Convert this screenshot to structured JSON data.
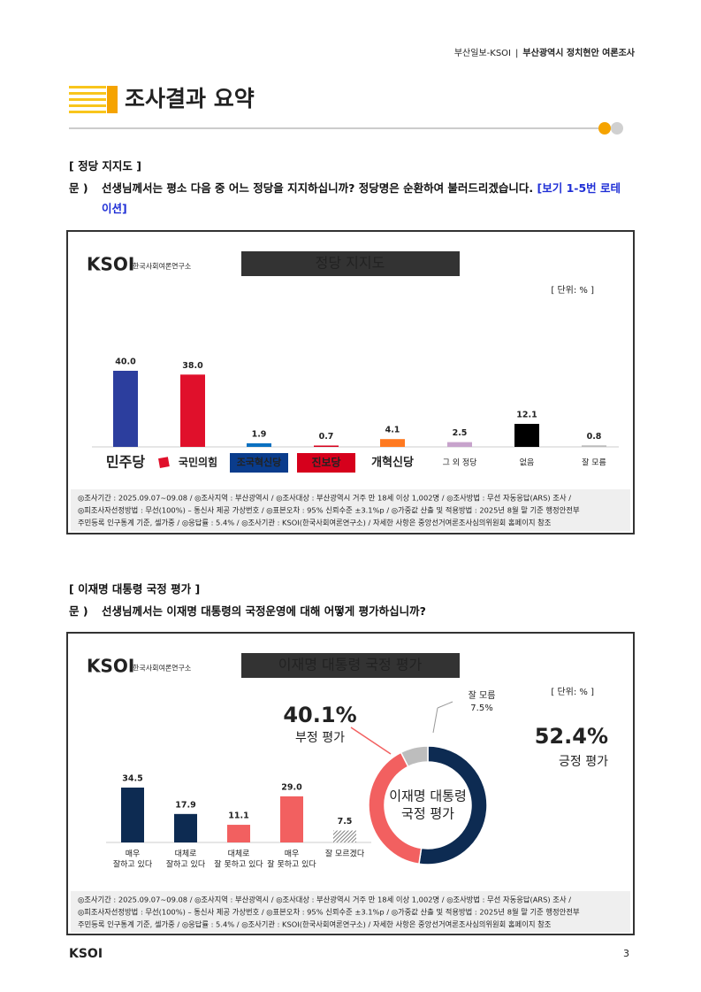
{
  "header": {
    "left": "부산일보-KSOI",
    "right": "부산광역시 정치현안 여론조사"
  },
  "section_title": "조사결과 요약",
  "questions": [
    {
      "label": "[ 정당 지지도 ]",
      "prefix": "문 )",
      "text": "선생님께서는 평소 다음 중 어느 정당을 지지하십니까? 정당명은 순환하여 불러드리겠습니다. ",
      "highlight": "[보기 1-5번 로테이션]"
    },
    {
      "label": "[ 이재명 대통령 국정 평가 ]",
      "prefix": "문 )",
      "text": "선생님께서는 이재명 대통령의 국정운영에 대해 어떻게 평가하십니까?"
    }
  ],
  "logo": {
    "brand": "KSOI",
    "org": "한국사회여론연구소"
  },
  "survey_note": [
    "◎조사기간 : 2025.09.07~09.08 / ◎조사지역 : 부산광역시 / ◎조사대상 : 부산광역시 거주 만 18세 이상 1,002명 / ◎조사방법 : 무선 자동응답(ARS) 조사 /",
    "◎피조사자선정방법 : 무선(100%) – 통신사 제공 가상번호 / ◎표본오차 : 95% 신뢰수준 ±3.1%p / ◎가중값 산출 및 적용방법 : 2025년 8월 말 기준 행정안전부",
    "주민등록 인구통계 기준, 셀가중 / ◎응답률 : 5.4% / ◎조사기관 : KSOI(한국사회여론연구소) / 자세한 사항은 중앙선거여론조사심의위원회 홈페이지 참조"
  ],
  "chart_data": [
    {
      "type": "bar",
      "title": "정당 지지도",
      "unit": "[ 단위: % ]",
      "categories": [
        [
          "민주당"
        ],
        [
          "국민의힘"
        ],
        [
          "조국혁신당"
        ],
        [
          "진보당"
        ],
        [
          "개혁신당"
        ],
        [
          "그 외 정당"
        ],
        [
          "없음"
        ],
        [
          "잘 모름"
        ]
      ],
      "values": [
        40.0,
        38.0,
        1.9,
        0.7,
        4.1,
        2.5,
        12.1,
        0.8
      ],
      "value_labels": [
        "40.0",
        "38.0",
        "1.9",
        "0.7",
        "4.1",
        "2.5",
        "12.1",
        "0.8"
      ],
      "colors": [
        "#2c3e9e",
        "#e0102b",
        "#0a70c0",
        "#d6001c",
        "#ff7920",
        "#c7a3cc",
        "#000000",
        "#bbbbbb"
      ]
    },
    {
      "type": "bar",
      "title": "이재명 대통령 국정 평가",
      "unit": "[ 단위: % ]",
      "categories": [
        [
          "매우",
          "잘하고 있다"
        ],
        [
          "대체로",
          "잘하고 있다"
        ],
        [
          "대체로",
          "잘 못하고 있다"
        ],
        [
          "매우",
          "잘 못하고 있다"
        ],
        [
          "잘 모르겠다"
        ]
      ],
      "values": [
        34.5,
        17.9,
        11.1,
        29.0,
        7.5
      ],
      "value_labels": [
        "34.5",
        "17.9",
        "11.1",
        "29.0",
        "7.5"
      ],
      "colors": [
        "#0d2b52",
        "#0d2b52",
        "#f26060",
        "#f26060",
        "#808080"
      ],
      "patterns": [
        null,
        null,
        null,
        null,
        "hatch"
      ]
    },
    {
      "type": "donut",
      "center_label": [
        "이재명 대통령",
        "국정 평가"
      ],
      "series": [
        {
          "name": "긍정 평가",
          "color": "#0d2b52"
        },
        {
          "name": "부정 평가",
          "color": "#f26060"
        },
        {
          "name": "잘 모름",
          "color": "#bdbdbd"
        }
      ],
      "values": [
        52.4,
        40.1,
        7.5
      ],
      "value_labels": [
        "52.4%",
        "40.1%",
        "7.5%"
      ]
    }
  ],
  "footer": {
    "brand": "KSOI",
    "page": "3"
  }
}
